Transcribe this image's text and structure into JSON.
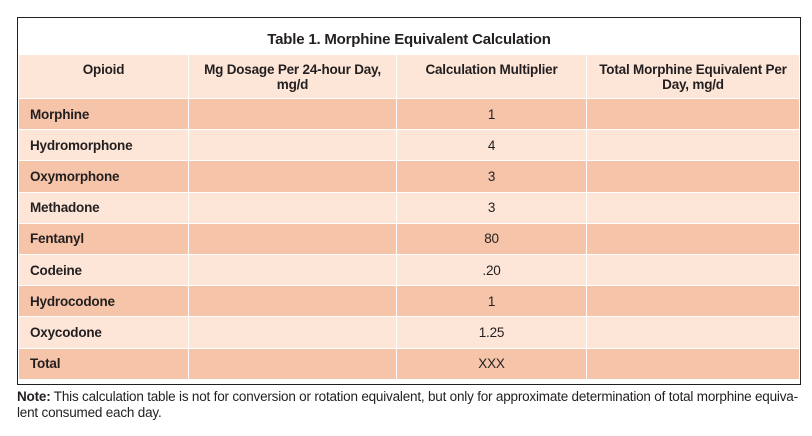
{
  "table": {
    "title": "Table 1. Morphine Equivalent Calculation",
    "headers": [
      "Opioid",
      "Mg Dosage Per 24-hour Day, mg/d",
      "Calculation Multiplier",
      "Total Morphine Equivalent Per Day, mg/d"
    ],
    "rows": [
      {
        "opioid": "Morphine",
        "dosage": "",
        "multiplier": "1",
        "total": ""
      },
      {
        "opioid": "Hydromorphone",
        "dosage": "",
        "multiplier": "4",
        "total": ""
      },
      {
        "opioid": "Oxymorphone",
        "dosage": "",
        "multiplier": "3",
        "total": ""
      },
      {
        "opioid": "Methadone",
        "dosage": "",
        "multiplier": "3",
        "total": ""
      },
      {
        "opioid": "Fentanyl",
        "dosage": "",
        "multiplier": "80",
        "total": ""
      },
      {
        "opioid": "Codeine",
        "dosage": "",
        "multiplier": ".20",
        "total": ""
      },
      {
        "opioid": "Hydrocodone",
        "dosage": "",
        "multiplier": "1",
        "total": ""
      },
      {
        "opioid": "Oxycodone",
        "dosage": "",
        "multiplier": "1.25",
        "total": ""
      },
      {
        "opioid": "Total",
        "dosage": "",
        "multiplier": "XXX",
        "total": ""
      }
    ]
  },
  "note": {
    "label": "Note:",
    "text": " This calculation table is not for conversion or rotation equivalent, but only for approximate determination of total morphine equiva- lent consumed each day."
  },
  "colors": {
    "row_dark": "#f6c4a8",
    "row_light": "#fde6d8",
    "text": "#231f20"
  }
}
